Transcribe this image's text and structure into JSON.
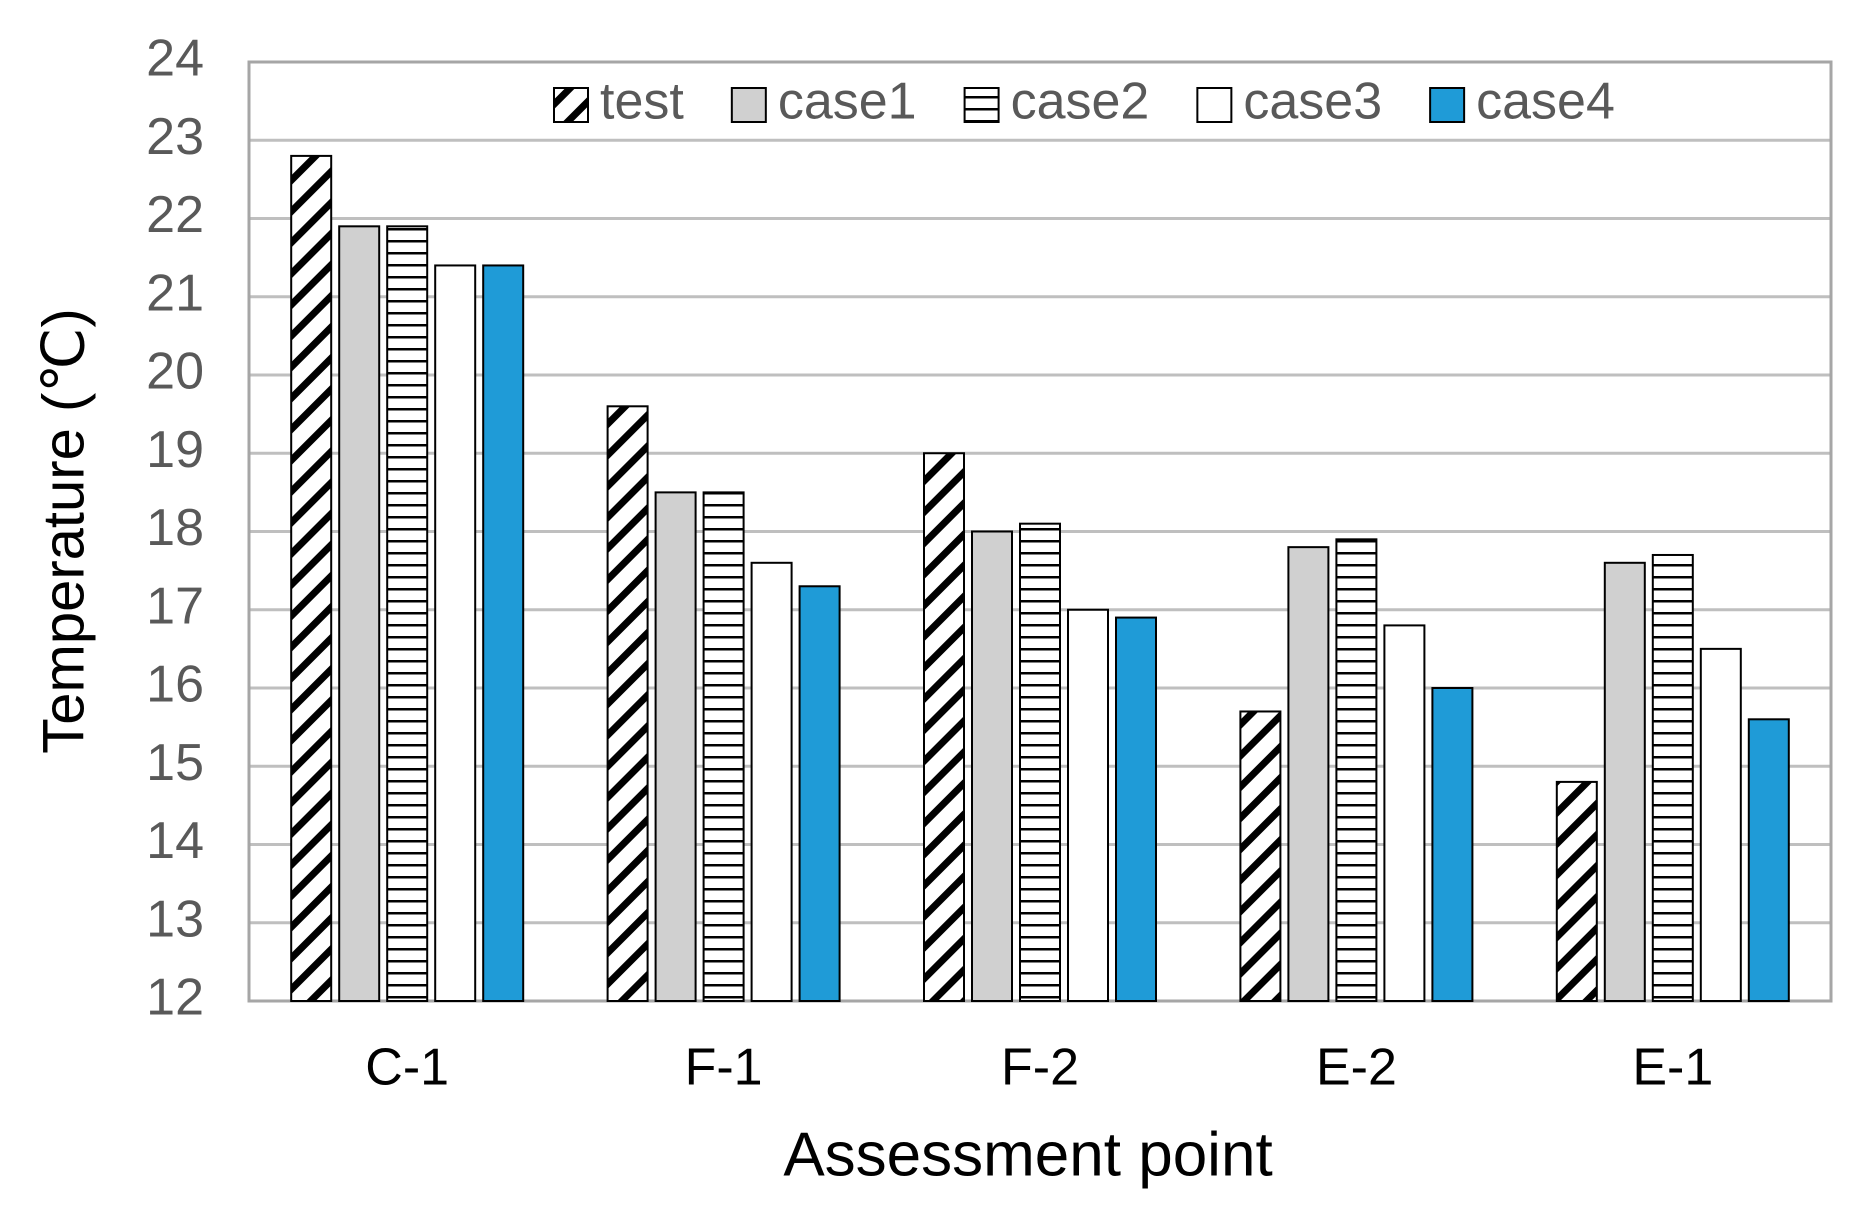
{
  "chart_data": {
    "type": "bar",
    "x_label": "Assessment point",
    "y_label": "Temperature (℃)",
    "categories": [
      "C-1",
      "F-1",
      "F-2",
      "E-2",
      "E-1"
    ],
    "series": [
      {
        "name": "test",
        "color": "#ffffff",
        "pattern": "diagonal",
        "values": [
          22.8,
          19.6,
          19.0,
          15.7,
          14.8
        ]
      },
      {
        "name": "case1",
        "color": "#d0d0d0",
        "values": [
          21.9,
          18.5,
          18.0,
          17.8,
          17.6
        ]
      },
      {
        "name": "case2",
        "color": "#ffffff",
        "pattern": "horizontal",
        "values": [
          21.9,
          18.5,
          18.1,
          17.9,
          17.7
        ]
      },
      {
        "name": "case3",
        "color": "#ffffff",
        "values": [
          21.4,
          17.6,
          17.0,
          16.8,
          16.5
        ]
      },
      {
        "name": "case4",
        "color": "#1f9bd7",
        "values": [
          21.4,
          17.3,
          16.9,
          16.0,
          15.6
        ]
      }
    ],
    "ylim": [
      12,
      24
    ],
    "yticks": [
      12,
      13,
      14,
      15,
      16,
      17,
      18,
      19,
      20,
      21,
      22,
      23,
      24
    ],
    "grid": true,
    "legend": "top"
  }
}
